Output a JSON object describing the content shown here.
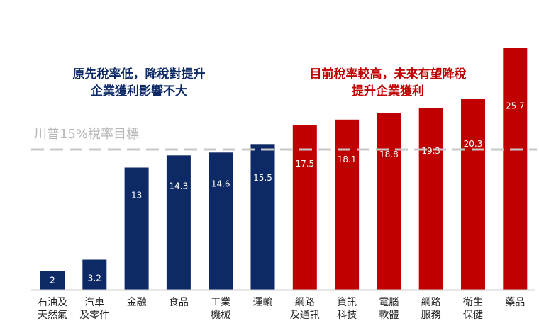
{
  "chart_data": {
    "type": "bar",
    "categories": [
      [
        "石油及",
        "天然氣"
      ],
      [
        "汽車",
        "及零件"
      ],
      [
        "金融"
      ],
      [
        "食品"
      ],
      [
        "工業",
        "機械"
      ],
      [
        "運輸"
      ],
      [
        "網路",
        "及通訊"
      ],
      [
        "資訊",
        "科技"
      ],
      [
        "電腦",
        "軟體"
      ],
      [
        "網路",
        "服務"
      ],
      [
        "衛生",
        "保健"
      ],
      [
        "藥品"
      ]
    ],
    "values": [
      2,
      3.2,
      13,
      14.3,
      14.6,
      15.5,
      17.5,
      18.1,
      18.8,
      19.3,
      20.3,
      25.7
    ],
    "value_labels": [
      "2",
      "3.2",
      "13",
      "14.3",
      "14.6",
      "15.5",
      "17.5",
      "18.1",
      "18.8",
      "19.3",
      "20.3",
      "25.7"
    ],
    "bar_colors": [
      "#0d2a66",
      "#0d2a66",
      "#0d2a66",
      "#0d2a66",
      "#0d2a66",
      "#0d2a66",
      "#c00000",
      "#c00000",
      "#c00000",
      "#c00000",
      "#c00000",
      "#c00000"
    ],
    "ylim": [
      0,
      27
    ],
    "reference_line": {
      "value": 15,
      "label": "川普15%稅率目標",
      "color": "#c8c8c8",
      "style": "dashed"
    },
    "annotations": [
      {
        "lines": [
          "原先稅率低，降稅對提升",
          "企業獲利影響不大"
        ],
        "color": "#0d2a66",
        "group": "left"
      },
      {
        "lines": [
          "目前稅率較高，未來有望降稅",
          "提升企業獲利"
        ],
        "color": "#c00000",
        "group": "right"
      }
    ],
    "grid": false,
    "legend": "none"
  }
}
